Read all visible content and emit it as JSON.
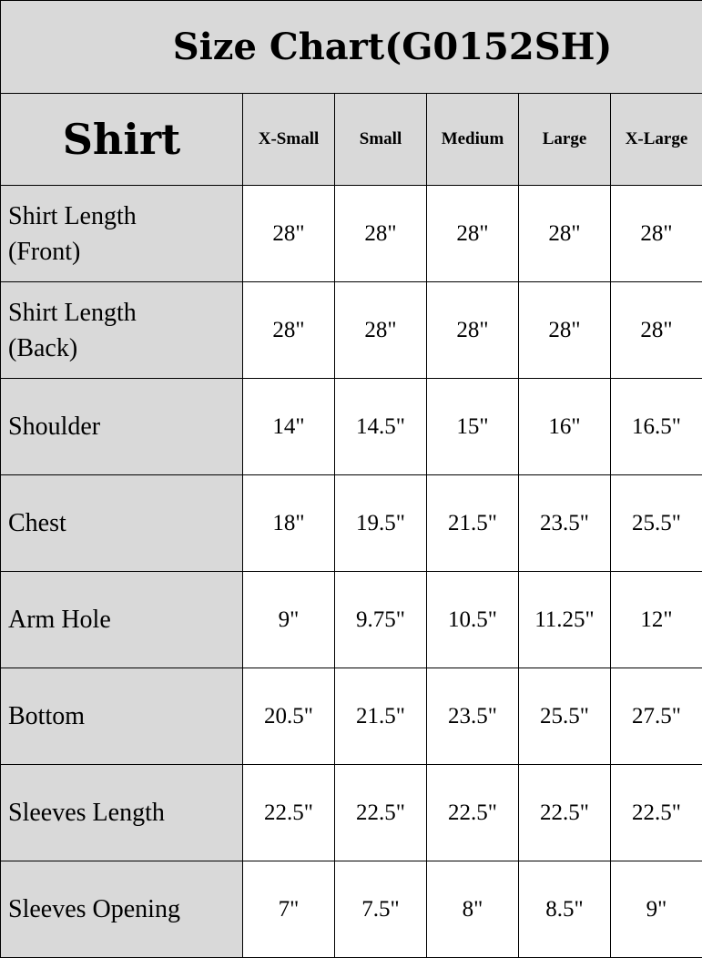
{
  "title": "Size Chart(G0152SH)",
  "header": {
    "corner": "Shirt",
    "sizes": [
      "X-Small",
      "Small",
      "Medium",
      "Large",
      "X-Large"
    ]
  },
  "rows": [
    {
      "label": "Shirt Length (Front)",
      "values": [
        "28\"",
        "28\"",
        "28\"",
        "28\"",
        "28\""
      ]
    },
    {
      "label": "Shirt Length (Back)",
      "values": [
        "28\"",
        "28\"",
        "28\"",
        "28\"",
        "28\""
      ]
    },
    {
      "label": "Shoulder",
      "values": [
        "14\"",
        "14.5\"",
        "15\"",
        "16\"",
        "16.5\""
      ]
    },
    {
      "label": "Chest",
      "values": [
        "18\"",
        "19.5\"",
        "21.5\"",
        "23.5\"",
        "25.5\""
      ]
    },
    {
      "label": "Arm Hole",
      "values": [
        "9\"",
        "9.75\"",
        "10.5\"",
        "11.25\"",
        "12\""
      ]
    },
    {
      "label": "Bottom",
      "values": [
        "20.5\"",
        "21.5\"",
        "23.5\"",
        "25.5\"",
        "27.5\""
      ]
    },
    {
      "label": "Sleeves Length",
      "values": [
        "22.5\"",
        "22.5\"",
        "22.5\"",
        "22.5\"",
        "22.5\""
      ]
    },
    {
      "label": "Sleeves Opening",
      "values": [
        "7\"",
        "7.5\"",
        "8\"",
        "8.5\"",
        "9\""
      ]
    }
  ],
  "colors": {
    "header_bg": "#d9d9d9",
    "cell_bg": "#ffffff",
    "border": "#000000"
  }
}
